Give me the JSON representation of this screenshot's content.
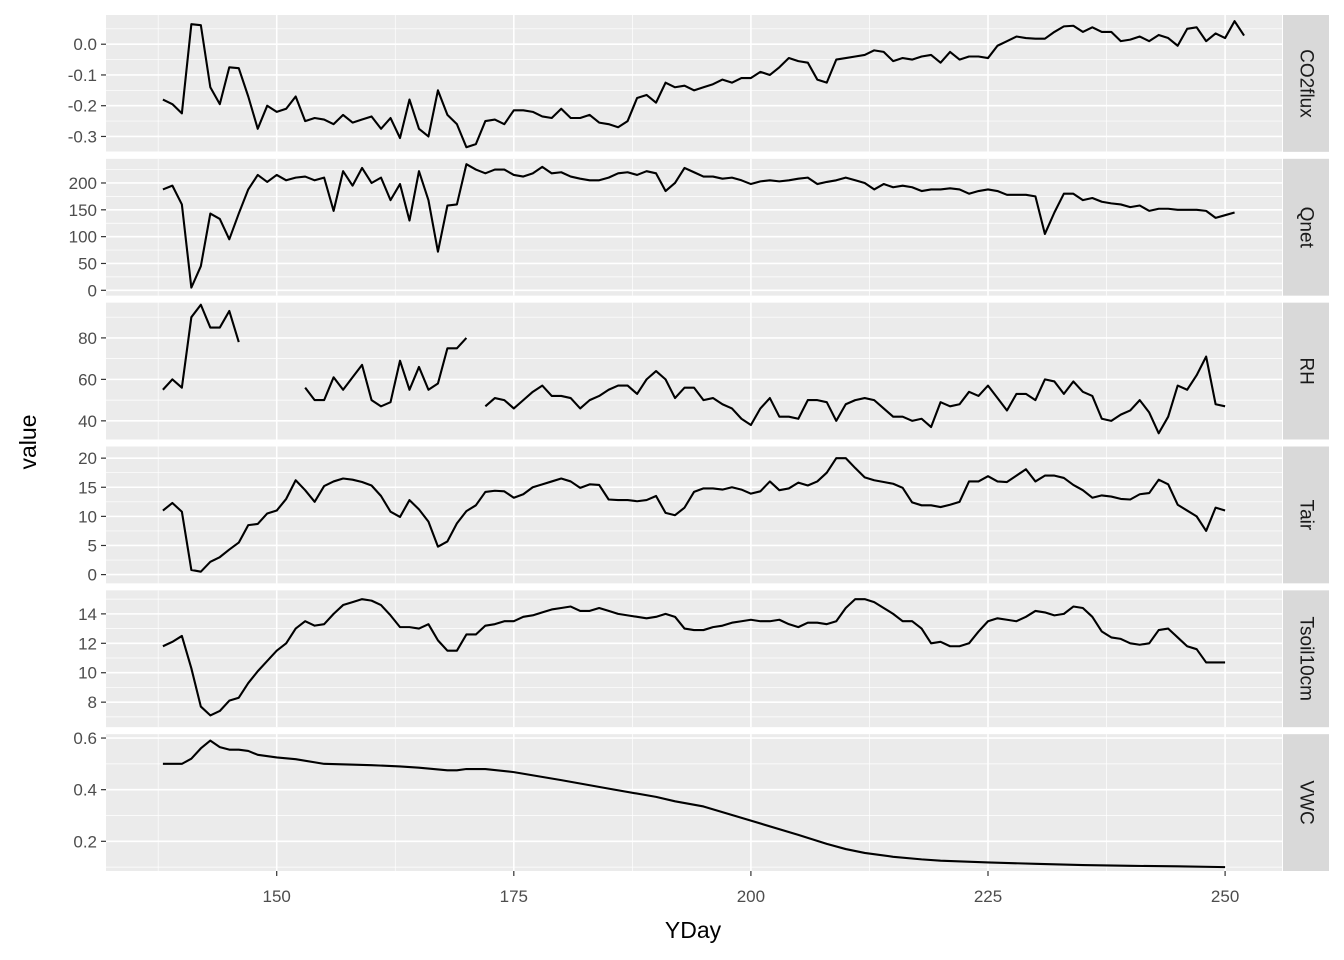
{
  "chart_data": {
    "type": "line",
    "xlabel": "YDay",
    "ylabel": "value",
    "xlim": [
      132,
      256
    ],
    "x_ticks": [
      150,
      175,
      200,
      225,
      250
    ],
    "grid": true,
    "facet_layout": "vertical-strips-right",
    "line_color": "#000000",
    "panel_background": "#ebebeb",
    "strip_background": "#d9d9d9",
    "panels": [
      {
        "name": "CO2flux",
        "ylim": [
          -0.35,
          0.095
        ],
        "y_ticks": [
          -0.3,
          -0.2,
          -0.1,
          0.0
        ],
        "y_tick_labels": [
          "-0.3",
          "-0.2",
          "-0.1",
          "0.0"
        ],
        "x_start": 138,
        "values": [
          -0.18,
          -0.195,
          -0.225,
          0.065,
          0.062,
          -0.14,
          -0.195,
          -0.075,
          -0.078,
          -0.17,
          -0.275,
          -0.2,
          -0.22,
          -0.21,
          -0.17,
          -0.25,
          -0.24,
          -0.245,
          -0.26,
          -0.23,
          -0.255,
          -0.245,
          -0.235,
          -0.275,
          -0.24,
          -0.305,
          -0.18,
          -0.275,
          -0.3,
          -0.15,
          -0.23,
          -0.26,
          -0.335,
          -0.325,
          -0.25,
          -0.245,
          -0.26,
          -0.215,
          -0.215,
          -0.22,
          -0.235,
          -0.24,
          -0.21,
          -0.24,
          -0.24,
          -0.23,
          -0.255,
          -0.26,
          -0.27,
          -0.25,
          -0.175,
          -0.165,
          -0.19,
          -0.125,
          -0.14,
          -0.135,
          -0.15,
          -0.14,
          -0.13,
          -0.115,
          -0.125,
          -0.11,
          -0.11,
          -0.09,
          -0.1,
          -0.075,
          -0.045,
          -0.055,
          -0.06,
          -0.115,
          -0.125,
          -0.05,
          -0.045,
          -0.04,
          -0.035,
          -0.02,
          -0.025,
          -0.055,
          -0.045,
          -0.05,
          -0.04,
          -0.035,
          -0.06,
          -0.025,
          -0.05,
          -0.04,
          -0.04,
          -0.045,
          -0.005,
          0.01,
          0.025,
          0.02,
          0.018,
          0.018,
          0.04,
          0.058,
          0.06,
          0.04,
          0.055,
          0.04,
          0.04,
          0.01,
          0.015,
          0.025,
          0.01,
          0.03,
          0.02,
          -0.005,
          0.05,
          0.055,
          0.01,
          0.035,
          0.02,
          0.075,
          0.028
        ]
      },
      {
        "name": "Qnet",
        "ylim": [
          -10,
          245
        ],
        "y_ticks": [
          0,
          50,
          100,
          150,
          200
        ],
        "y_tick_labels": [
          "0",
          "50",
          "100",
          "150",
          "200"
        ],
        "x_start": 138,
        "values": [
          188,
          195,
          160,
          5,
          45,
          143,
          133,
          95,
          143,
          188,
          215,
          202,
          215,
          205,
          210,
          212,
          205,
          210,
          148,
          222,
          195,
          228,
          200,
          210,
          168,
          198,
          130,
          222,
          168,
          72,
          158,
          160,
          235,
          225,
          218,
          225,
          225,
          215,
          212,
          218,
          230,
          218,
          220,
          212,
          208,
          205,
          205,
          210,
          218,
          220,
          215,
          222,
          218,
          185,
          200,
          228,
          220,
          212,
          212,
          208,
          210,
          205,
          198,
          203,
          205,
          203,
          205,
          208,
          210,
          198,
          202,
          205,
          210,
          205,
          200,
          188,
          198,
          192,
          195,
          192,
          185,
          188,
          188,
          190,
          188,
          180,
          185,
          188,
          185,
          178,
          178,
          178,
          175,
          105,
          145,
          180,
          180,
          168,
          172,
          165,
          162,
          160,
          155,
          158,
          148,
          152,
          152,
          150,
          150,
          150,
          148,
          135,
          140,
          145
        ]
      },
      {
        "name": "RH",
        "ylim": [
          31,
          97
        ],
        "y_ticks": [
          40,
          60,
          80
        ],
        "y_tick_labels": [
          "40",
          "60",
          "80"
        ],
        "segments": [
          {
            "x_start": 138,
            "values": [
              55,
              60,
              56,
              90,
              96,
              85,
              85,
              93,
              78
            ]
          },
          {
            "x_start": 153,
            "values": [
              56,
              50,
              50,
              61,
              55,
              61,
              67,
              50,
              47,
              49,
              69,
              55,
              66,
              55,
              58,
              75,
              75,
              80
            ]
          },
          {
            "x_start": 172,
            "values": [
              47,
              51,
              50,
              46,
              50,
              54,
              57,
              52,
              52,
              51,
              46,
              50,
              52,
              55,
              57,
              57,
              53,
              60,
              64,
              60,
              51,
              56,
              56,
              50,
              51,
              48,
              46,
              41,
              38,
              46,
              51,
              42,
              42,
              41,
              50,
              50,
              49,
              40,
              48,
              50,
              51,
              50,
              46,
              42,
              42,
              40,
              41,
              37,
              49,
              47,
              48,
              54,
              52,
              57,
              51,
              45,
              53,
              53,
              50,
              60,
              59,
              53,
              59,
              54,
              52,
              41,
              40,
              43,
              45,
              50,
              44,
              34,
              42,
              57,
              55,
              62,
              71,
              48,
              47
            ]
          }
        ]
      },
      {
        "name": "Tair",
        "ylim": [
          -1.5,
          22
        ],
        "y_ticks": [
          0,
          5,
          10,
          15,
          20
        ],
        "y_tick_labels": [
          "0",
          "5",
          "10",
          "15",
          "20"
        ],
        "x_start": 138,
        "values": [
          11,
          12.3,
          10.8,
          0.8,
          0.5,
          2.2,
          3,
          4.3,
          5.5,
          8.5,
          8.7,
          10.5,
          11,
          13,
          16.2,
          14.5,
          12.5,
          15.2,
          16,
          16.5,
          16.3,
          15.9,
          15.3,
          13.5,
          10.8,
          9.9,
          12.8,
          11.2,
          9.1,
          4.8,
          5.7,
          8.8,
          10.9,
          11.9,
          14.2,
          14.4,
          14.3,
          13.2,
          13.8,
          15,
          15.5,
          16,
          16.5,
          16,
          14.9,
          15.5,
          15.4,
          12.9,
          12.8,
          12.8,
          12.6,
          12.8,
          13.5,
          10.6,
          10.2,
          11.5,
          14.2,
          14.8,
          14.8,
          14.6,
          15,
          14.6,
          13.9,
          14.3,
          16,
          14.5,
          14.8,
          15.8,
          15.3,
          16,
          17.5,
          20,
          20,
          18.3,
          16.7,
          16.2,
          15.9,
          15.6,
          14.9,
          12.4,
          11.9,
          11.9,
          11.6,
          12,
          12.5,
          16,
          16,
          16.9,
          16,
          15.9,
          17,
          18.1,
          16,
          17,
          17,
          16.6,
          15.4,
          14.5,
          13.2,
          13.6,
          13.4,
          13,
          12.9,
          13.8,
          14,
          16.3,
          15.5,
          12,
          11,
          10,
          7.5,
          11.5,
          11
        ]
      },
      {
        "name": "Tsoil10cm",
        "ylim": [
          6.3,
          15.6
        ],
        "y_ticks": [
          8,
          10,
          12,
          14
        ],
        "y_tick_labels": [
          "8",
          "10",
          "12",
          "14"
        ],
        "x_start": 138,
        "values": [
          11.8,
          12.1,
          12.5,
          10.3,
          7.7,
          7.1,
          7.4,
          8.1,
          8.3,
          9.3,
          10.1,
          10.8,
          11.5,
          12,
          13,
          13.5,
          13.2,
          13.3,
          14,
          14.6,
          14.8,
          15,
          14.9,
          14.6,
          13.9,
          13.1,
          13.1,
          13,
          13.3,
          12.2,
          11.5,
          11.5,
          12.6,
          12.6,
          13.2,
          13.3,
          13.5,
          13.5,
          13.8,
          13.9,
          14.1,
          14.3,
          14.4,
          14.5,
          14.2,
          14.2,
          14.4,
          14.2,
          14,
          13.9,
          13.8,
          13.7,
          13.8,
          14,
          13.8,
          13,
          12.9,
          12.9,
          13.1,
          13.2,
          13.4,
          13.5,
          13.6,
          13.5,
          13.5,
          13.6,
          13.3,
          13.1,
          13.4,
          13.4,
          13.3,
          13.5,
          14.4,
          15,
          15,
          14.8,
          14.4,
          14,
          13.5,
          13.5,
          13,
          12,
          12.1,
          11.8,
          11.8,
          12,
          12.8,
          13.5,
          13.7,
          13.6,
          13.5,
          13.8,
          14.2,
          14.1,
          13.9,
          14,
          14.5,
          14.4,
          13.8,
          12.8,
          12.4,
          12.3,
          12,
          11.9,
          12,
          12.9,
          13,
          12.4,
          11.8,
          11.6,
          10.7,
          10.7,
          10.7
        ]
      },
      {
        "name": "VWC",
        "ylim": [
          0.085,
          0.615
        ],
        "y_ticks": [
          0.2,
          0.4,
          0.6
        ],
        "y_tick_labels": [
          "0.2",
          "0.4",
          "0.6"
        ],
        "x": [
          138,
          140,
          141,
          142,
          143,
          144,
          145,
          146,
          147,
          148,
          150,
          152,
          155,
          160,
          163,
          165,
          168,
          169,
          170,
          172,
          175,
          180,
          185,
          190,
          192,
          195,
          200,
          205,
          208,
          210,
          212,
          215,
          218,
          220,
          225,
          230,
          235,
          240,
          245,
          250
        ],
        "values": [
          0.5,
          0.5,
          0.52,
          0.56,
          0.59,
          0.565,
          0.555,
          0.555,
          0.55,
          0.535,
          0.525,
          0.518,
          0.5,
          0.495,
          0.49,
          0.485,
          0.475,
          0.475,
          0.48,
          0.48,
          0.468,
          0.437,
          0.404,
          0.372,
          0.355,
          0.335,
          0.28,
          0.225,
          0.19,
          0.17,
          0.155,
          0.14,
          0.13,
          0.125,
          0.118,
          0.113,
          0.108,
          0.105,
          0.103,
          0.1
        ]
      }
    ]
  }
}
